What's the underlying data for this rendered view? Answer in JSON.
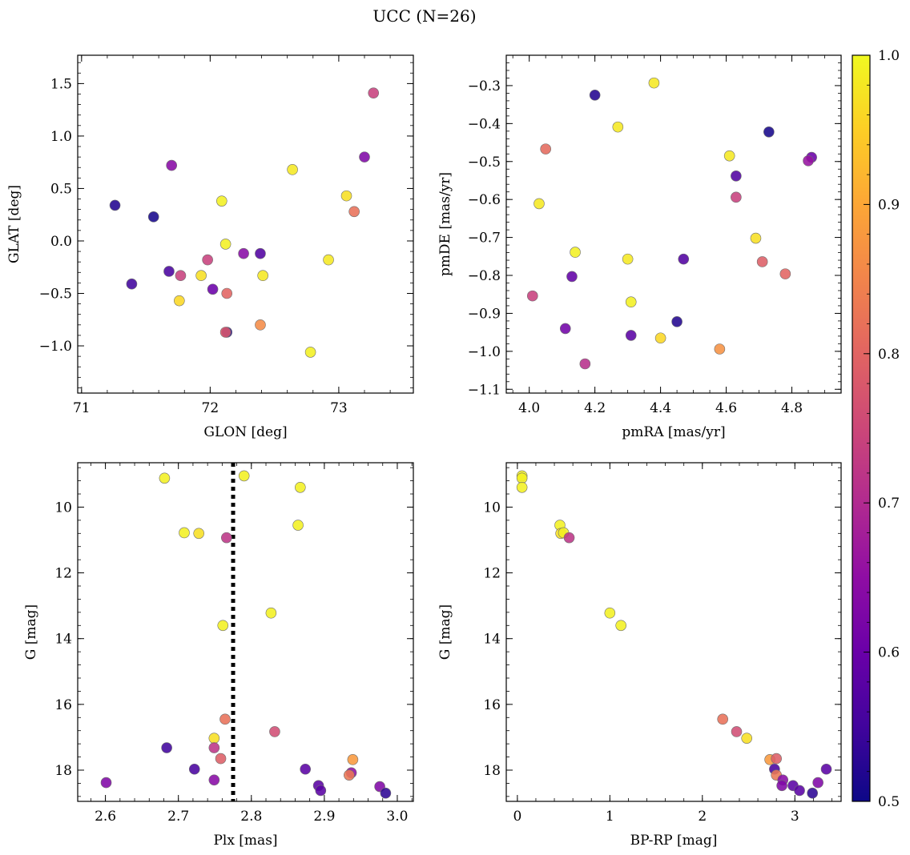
{
  "figure_title": "UCC (N=26)",
  "chart_data": [
    {
      "type": "scatter",
      "panel": "top-left",
      "xlabel": "GLON [deg]",
      "ylabel": "GLAT [deg]",
      "xlim": [
        70.97,
        73.58
      ],
      "ylim": [
        -1.45,
        1.77
      ],
      "xticks": [
        71,
        72,
        73
      ],
      "yticks": [
        -1.0,
        -0.5,
        0.0,
        0.5,
        1.0,
        1.5
      ],
      "xtick_labels": [
        "71",
        "72",
        "73"
      ],
      "ytick_labels": [
        "−1.0",
        "−0.5",
        "0.0",
        "0.5",
        "1.0",
        "1.5"
      ],
      "x_minor_step": 0.2,
      "y_minor_step": 0.1,
      "points": [
        {
          "x": 71.26,
          "y": 0.34,
          "c": 0.52
        },
        {
          "x": 71.56,
          "y": 0.23,
          "c": 0.51
        },
        {
          "x": 71.7,
          "y": 0.72,
          "c": 0.64
        },
        {
          "x": 71.39,
          "y": -0.41,
          "c": 0.55
        },
        {
          "x": 71.68,
          "y": -0.29,
          "c": 0.56
        },
        {
          "x": 71.77,
          "y": -0.33,
          "c": 0.74
        },
        {
          "x": 71.76,
          "y": -0.57,
          "c": 0.96
        },
        {
          "x": 71.93,
          "y": -0.33,
          "c": 0.97
        },
        {
          "x": 71.98,
          "y": -0.18,
          "c": 0.74
        },
        {
          "x": 72.02,
          "y": -0.46,
          "c": 0.6
        },
        {
          "x": 72.09,
          "y": 0.38,
          "c": 0.99
        },
        {
          "x": 72.12,
          "y": -0.03,
          "c": 0.99
        },
        {
          "x": 72.13,
          "y": -0.5,
          "c": 0.8
        },
        {
          "x": 72.13,
          "y": -0.87,
          "c": 0.52
        },
        {
          "x": 72.12,
          "y": -0.87,
          "c": 0.78
        },
        {
          "x": 72.26,
          "y": -0.12,
          "c": 0.64
        },
        {
          "x": 72.39,
          "y": -0.12,
          "c": 0.57
        },
        {
          "x": 72.41,
          "y": -0.33,
          "c": 0.98
        },
        {
          "x": 72.39,
          "y": -0.8,
          "c": 0.86
        },
        {
          "x": 72.64,
          "y": 0.68,
          "c": 0.98
        },
        {
          "x": 72.78,
          "y": -1.06,
          "c": 0.99
        },
        {
          "x": 72.92,
          "y": -0.18,
          "c": 0.98
        },
        {
          "x": 73.06,
          "y": 0.43,
          "c": 0.97
        },
        {
          "x": 73.12,
          "y": 0.28,
          "c": 0.82
        },
        {
          "x": 73.2,
          "y": 0.8,
          "c": 0.63
        },
        {
          "x": 73.27,
          "y": 1.41,
          "c": 0.74
        }
      ]
    },
    {
      "type": "scatter",
      "panel": "top-right",
      "xlabel": "pmRA [mas/yr]",
      "ylabel": "pmDE [mas/yr]",
      "xlim": [
        3.93,
        4.95
      ],
      "ylim": [
        -1.11,
        -0.22
      ],
      "xticks": [
        4.0,
        4.2,
        4.4,
        4.6,
        4.8
      ],
      "yticks": [
        -1.1,
        -1.0,
        -0.9,
        -0.8,
        -0.7,
        -0.6,
        -0.5,
        -0.4,
        -0.3
      ],
      "xtick_labels": [
        "4.0",
        "4.2",
        "4.4",
        "4.6",
        "4.8"
      ],
      "ytick_labels": [
        "−1.1",
        "−1.0",
        "−0.9",
        "−0.8",
        "−0.7",
        "−0.6",
        "−0.5",
        "−0.4",
        "−0.3"
      ],
      "x_minor_step": 0.05,
      "y_minor_step": 0.02,
      "points": [
        {
          "x": 4.2,
          "y": -0.325,
          "c": 0.52
        },
        {
          "x": 4.38,
          "y": -0.293,
          "c": 0.98
        },
        {
          "x": 4.27,
          "y": -0.409,
          "c": 0.98
        },
        {
          "x": 4.05,
          "y": -0.467,
          "c": 0.81
        },
        {
          "x": 4.73,
          "y": -0.422,
          "c": 0.51
        },
        {
          "x": 4.86,
          "y": -0.489,
          "c": 0.6
        },
        {
          "x": 4.85,
          "y": -0.498,
          "c": 0.66
        },
        {
          "x": 4.61,
          "y": -0.485,
          "c": 0.98
        },
        {
          "x": 4.63,
          "y": -0.538,
          "c": 0.57
        },
        {
          "x": 4.63,
          "y": -0.594,
          "c": 0.74
        },
        {
          "x": 4.03,
          "y": -0.611,
          "c": 0.98
        },
        {
          "x": 4.69,
          "y": -0.702,
          "c": 0.97
        },
        {
          "x": 4.14,
          "y": -0.739,
          "c": 0.99
        },
        {
          "x": 4.3,
          "y": -0.757,
          "c": 0.98
        },
        {
          "x": 4.47,
          "y": -0.757,
          "c": 0.57
        },
        {
          "x": 4.71,
          "y": -0.764,
          "c": 0.79
        },
        {
          "x": 4.13,
          "y": -0.803,
          "c": 0.59
        },
        {
          "x": 4.78,
          "y": -0.796,
          "c": 0.8
        },
        {
          "x": 4.01,
          "y": -0.854,
          "c": 0.74
        },
        {
          "x": 4.31,
          "y": -0.87,
          "c": 0.99
        },
        {
          "x": 4.11,
          "y": -0.94,
          "c": 0.61
        },
        {
          "x": 4.31,
          "y": -0.958,
          "c": 0.58
        },
        {
          "x": 4.45,
          "y": -0.922,
          "c": 0.52
        },
        {
          "x": 4.4,
          "y": -0.965,
          "c": 0.96
        },
        {
          "x": 4.58,
          "y": -0.994,
          "c": 0.87
        },
        {
          "x": 4.17,
          "y": -1.033,
          "c": 0.71
        }
      ]
    },
    {
      "type": "scatter",
      "panel": "bottom-left",
      "xlabel": "Plx [mas]",
      "ylabel": "G [mag]",
      "xlim": [
        2.562,
        3.022
      ],
      "ylim": [
        18.95,
        8.65
      ],
      "y_inverted": true,
      "xticks": [
        2.6,
        2.7,
        2.8,
        2.9,
        3.0
      ],
      "yticks": [
        10,
        12,
        14,
        16,
        18
      ],
      "xtick_labels": [
        "2.6",
        "2.7",
        "2.8",
        "2.9",
        "3.0"
      ],
      "ytick_labels": [
        "10",
        "12",
        "14",
        "16",
        "18"
      ],
      "x_minor_step": 0.02,
      "y_minor_step": 0.4,
      "vline": {
        "x": 2.775,
        "style": "dotted",
        "color": "#000000"
      },
      "points": [
        {
          "x": 2.681,
          "y": 9.12,
          "c": 0.99
        },
        {
          "x": 2.79,
          "y": 9.05,
          "c": 0.99
        },
        {
          "x": 2.867,
          "y": 9.4,
          "c": 0.99
        },
        {
          "x": 2.864,
          "y": 10.55,
          "c": 0.99
        },
        {
          "x": 2.708,
          "y": 10.78,
          "c": 0.99
        },
        {
          "x": 2.728,
          "y": 10.8,
          "c": 0.97
        },
        {
          "x": 2.766,
          "y": 10.93,
          "c": 0.72
        },
        {
          "x": 2.827,
          "y": 13.22,
          "c": 0.99
        },
        {
          "x": 2.761,
          "y": 13.6,
          "c": 0.99
        },
        {
          "x": 2.764,
          "y": 16.45,
          "c": 0.82
        },
        {
          "x": 2.832,
          "y": 16.83,
          "c": 0.76
        },
        {
          "x": 2.749,
          "y": 17.03,
          "c": 0.97
        },
        {
          "x": 2.749,
          "y": 17.32,
          "c": 0.72
        },
        {
          "x": 2.684,
          "y": 17.32,
          "c": 0.55
        },
        {
          "x": 2.758,
          "y": 17.65,
          "c": 0.79
        },
        {
          "x": 2.939,
          "y": 17.68,
          "c": 0.88
        },
        {
          "x": 2.722,
          "y": 17.97,
          "c": 0.56
        },
        {
          "x": 2.874,
          "y": 17.97,
          "c": 0.58
        },
        {
          "x": 2.937,
          "y": 18.08,
          "c": 0.65
        },
        {
          "x": 2.934,
          "y": 18.15,
          "c": 0.83
        },
        {
          "x": 2.749,
          "y": 18.3,
          "c": 0.64
        },
        {
          "x": 2.601,
          "y": 18.38,
          "c": 0.63
        },
        {
          "x": 2.892,
          "y": 18.47,
          "c": 0.58
        },
        {
          "x": 2.976,
          "y": 18.5,
          "c": 0.63
        },
        {
          "x": 2.895,
          "y": 18.62,
          "c": 0.58
        },
        {
          "x": 2.984,
          "y": 18.7,
          "c": 0.53
        }
      ]
    },
    {
      "type": "scatter",
      "panel": "bottom-right",
      "xlabel": "BP-RP [mag]",
      "ylabel": "G [mag]",
      "xlim": [
        -0.12,
        3.5
      ],
      "ylim": [
        18.95,
        8.65
      ],
      "y_inverted": true,
      "xticks": [
        0,
        1,
        2,
        3
      ],
      "yticks": [
        10,
        12,
        14,
        16,
        18
      ],
      "xtick_labels": [
        "0",
        "1",
        "2",
        "3"
      ],
      "ytick_labels": [
        "10",
        "12",
        "14",
        "16",
        "18"
      ],
      "x_minor_step": 0.2,
      "y_minor_step": 0.4,
      "points": [
        {
          "x": 0.05,
          "y": 9.05,
          "c": 0.99
        },
        {
          "x": 0.05,
          "y": 9.12,
          "c": 0.99
        },
        {
          "x": 0.05,
          "y": 9.4,
          "c": 0.99
        },
        {
          "x": 0.46,
          "y": 10.55,
          "c": 0.99
        },
        {
          "x": 0.47,
          "y": 10.8,
          "c": 0.97
        },
        {
          "x": 0.5,
          "y": 10.78,
          "c": 0.99
        },
        {
          "x": 0.56,
          "y": 10.93,
          "c": 0.72
        },
        {
          "x": 1.0,
          "y": 13.22,
          "c": 0.99
        },
        {
          "x": 1.12,
          "y": 13.6,
          "c": 0.99
        },
        {
          "x": 2.22,
          "y": 16.45,
          "c": 0.82
        },
        {
          "x": 2.37,
          "y": 16.83,
          "c": 0.76
        },
        {
          "x": 2.48,
          "y": 17.03,
          "c": 0.97
        },
        {
          "x": 2.73,
          "y": 17.68,
          "c": 0.88
        },
        {
          "x": 2.8,
          "y": 17.65,
          "c": 0.79
        },
        {
          "x": 2.78,
          "y": 17.97,
          "c": 0.56
        },
        {
          "x": 2.8,
          "y": 18.15,
          "c": 0.83
        },
        {
          "x": 2.87,
          "y": 18.3,
          "c": 0.64
        },
        {
          "x": 2.86,
          "y": 18.47,
          "c": 0.63
        },
        {
          "x": 2.98,
          "y": 18.47,
          "c": 0.58
        },
        {
          "x": 3.05,
          "y": 18.62,
          "c": 0.58
        },
        {
          "x": 3.19,
          "y": 18.7,
          "c": 0.53
        },
        {
          "x": 3.25,
          "y": 18.38,
          "c": 0.63
        },
        {
          "x": 3.34,
          "y": 17.97,
          "c": 0.58
        }
      ]
    }
  ],
  "colorbar": {
    "colormap": "plasma",
    "range": [
      0.5,
      1.0
    ],
    "ticks": [
      0.5,
      0.6,
      0.7,
      0.8,
      0.9,
      1.0
    ],
    "tick_labels": [
      "0.5",
      "0.6",
      "0.7",
      "0.8",
      "0.9",
      "1.0"
    ],
    "minor_step": 0.02
  }
}
